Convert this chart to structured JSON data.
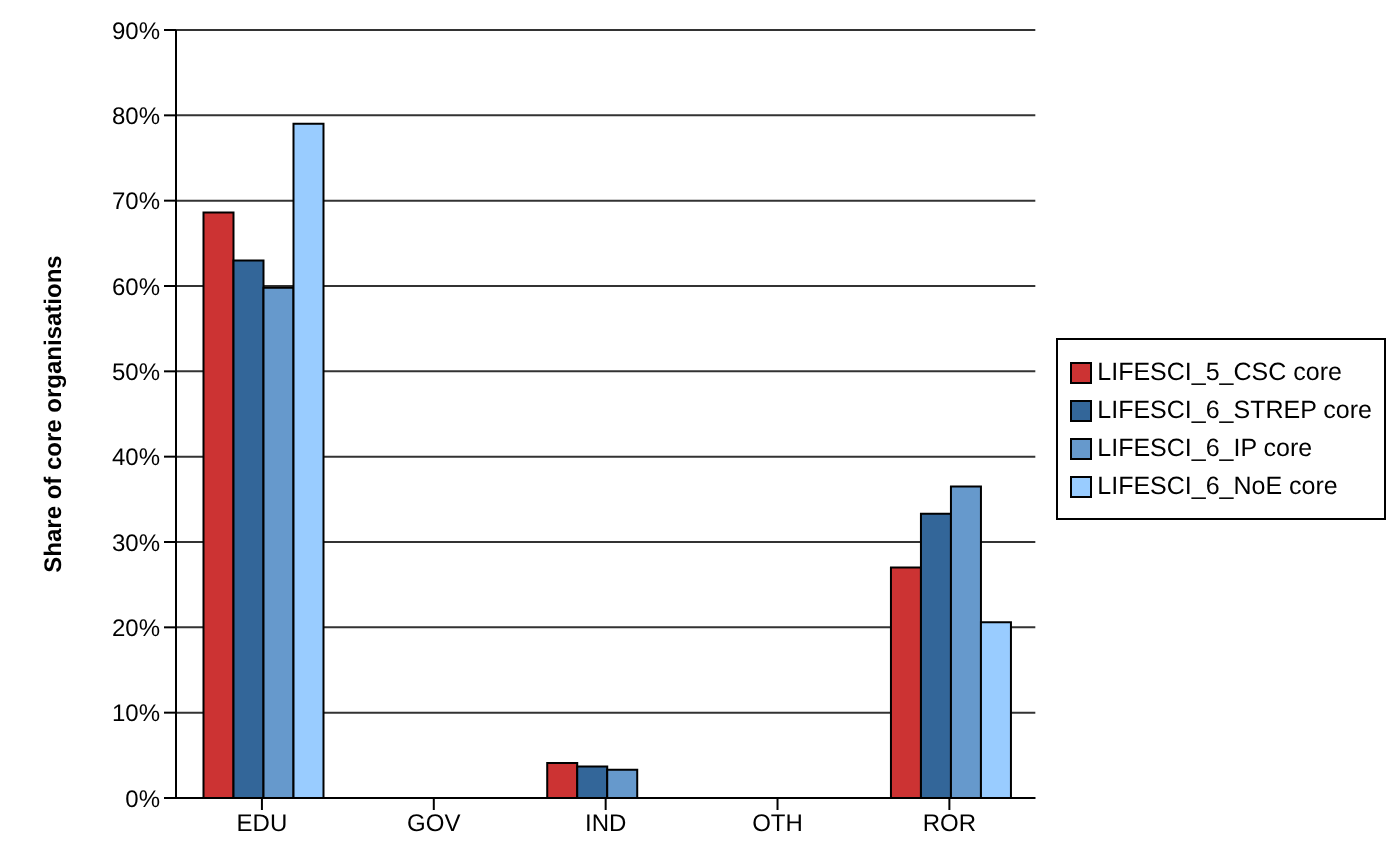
{
  "chart_data": {
    "type": "bar",
    "ylabel": "Share of core organisations",
    "categories": [
      "EDU",
      "GOV",
      "IND",
      "OTH",
      "ROR"
    ],
    "series": [
      {
        "name": "LIFESCI_5_CSC core",
        "color": "#cc3333",
        "values": [
          68.6,
          0,
          4.1,
          0,
          27.0
        ]
      },
      {
        "name": "LIFESCI_6_STREP core",
        "color": "#336699",
        "values": [
          63.0,
          0,
          3.7,
          0,
          33.3
        ]
      },
      {
        "name": "LIFESCI_6_IP core",
        "color": "#6699cc",
        "values": [
          59.8,
          0,
          3.3,
          0,
          36.5
        ]
      },
      {
        "name": "LIFESCI_6_NoE core",
        "color": "#99ccff",
        "values": [
          79.0,
          0,
          0,
          0,
          20.6
        ]
      }
    ],
    "ylim": [
      0,
      90
    ],
    "yticks": [
      {
        "value": 0,
        "label": "0%"
      },
      {
        "value": 10,
        "label": "10%"
      },
      {
        "value": 20,
        "label": "20%"
      },
      {
        "value": 30,
        "label": "30%"
      },
      {
        "value": 40,
        "label": "40%"
      },
      {
        "value": 50,
        "label": "50%"
      },
      {
        "value": 60,
        "label": "60%"
      },
      {
        "value": 70,
        "label": "70%"
      },
      {
        "value": 80,
        "label": "80%"
      },
      {
        "value": 90,
        "label": "90%"
      }
    ],
    "grid": "y",
    "legend": "right"
  }
}
